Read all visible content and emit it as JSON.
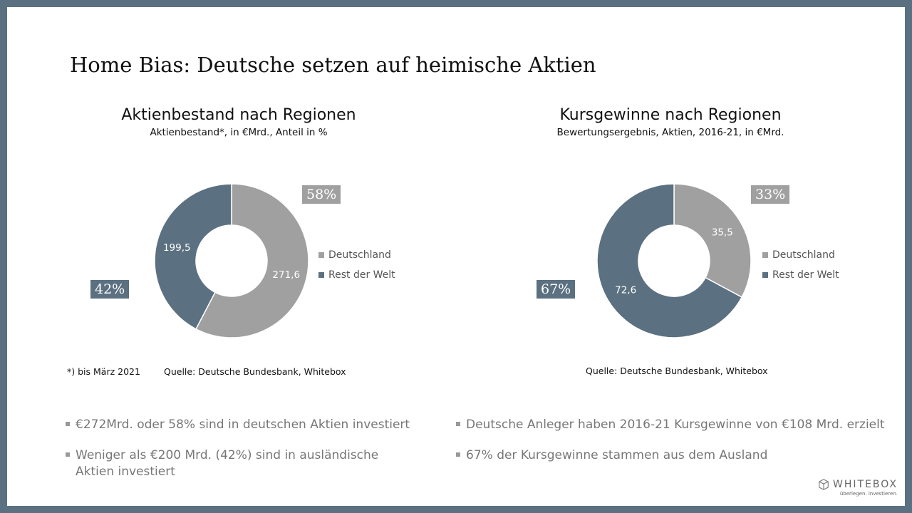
{
  "title": "Home Bias: Deutsche setzen auf heimische Aktien",
  "colors": {
    "deutschland": "#a0a0a0",
    "rest": "#5b7080"
  },
  "chart_data": [
    {
      "type": "pie",
      "donut": true,
      "title": "Aktienbestand nach Regionen",
      "subtitle": "Aktienbestand*, in €Mrd., Anteil in %",
      "categories": [
        "Deutschland",
        "Rest der Welt"
      ],
      "values": [
        271.6,
        199.5
      ],
      "value_labels": [
        "271,6",
        "199,5"
      ],
      "percent_labels": [
        "58%",
        "42%"
      ],
      "percents": [
        58,
        42
      ],
      "legend": "right"
    },
    {
      "type": "pie",
      "donut": true,
      "title": "Kursgewinne nach Regionen",
      "subtitle": "Bewertungsergebnis, Aktien, 2016-21, in €Mrd.",
      "categories": [
        "Deutschland",
        "Rest der Welt"
      ],
      "values": [
        35.5,
        72.6
      ],
      "value_labels": [
        "35,5",
        "72,6"
      ],
      "percent_labels": [
        "33%",
        "67%"
      ],
      "percents": [
        33,
        67
      ],
      "legend": "right"
    }
  ],
  "notes": {
    "footnote": "*) bis März 2021",
    "source1": "Quelle:  Deutsche Bundesbank, Whitebox",
    "source2": "Quelle:  Deutsche Bundesbank, Whitebox"
  },
  "bullets_left": [
    "€272Mrd. oder 58% sind in deutschen Aktien investiert",
    "Weniger als €200 Mrd. (42%) sind in ausländische Aktien investiert"
  ],
  "bullets_right": [
    "Deutsche Anleger haben 2016-21 Kursgewinne von €108 Mrd. erzielt",
    "67% der Kursgewinne stammen aus dem Ausland"
  ],
  "logo": {
    "name": "WHITEBOX",
    "tagline": "überlegen. investieren."
  }
}
